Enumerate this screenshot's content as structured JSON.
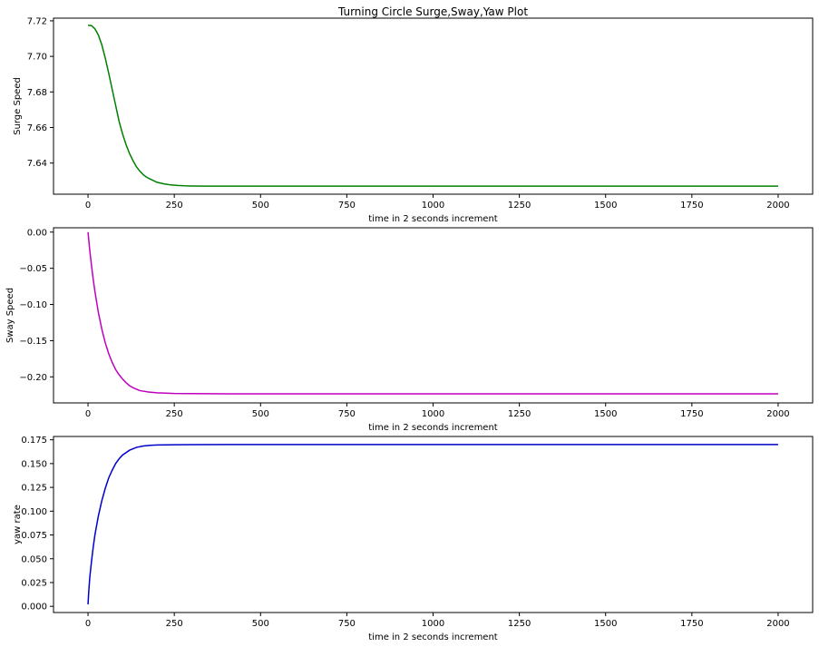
{
  "title": "Turning Circle Surge,Sway,Yaw Plot",
  "chart_data": [
    {
      "type": "line",
      "title": "Turning Circle Surge,Sway,Yaw Plot",
      "xlabel": "time in 2 seconds increment",
      "ylabel": "Surge Speed",
      "xlim": [
        -100,
        2100
      ],
      "ylim": [
        7.6225,
        7.7215
      ],
      "xticks": [
        0,
        250,
        500,
        750,
        1000,
        1250,
        1500,
        1750,
        2000
      ],
      "yticks": [
        7.64,
        7.66,
        7.68,
        7.7,
        7.72
      ],
      "ytick_labels": [
        "7.64",
        "7.66",
        "7.68",
        "7.70",
        "7.72"
      ],
      "grid": false,
      "color": "#008000",
      "series": [
        {
          "x": [
            0,
            10,
            20,
            30,
            40,
            50,
            60,
            70,
            80,
            90,
            100,
            110,
            120,
            130,
            140,
            150,
            160,
            170,
            180,
            190,
            200,
            220,
            240,
            260,
            280,
            300,
            350,
            400,
            450,
            500,
            750,
            1000,
            1250,
            1500,
            1750,
            2000
          ],
          "values": [
            7.7175,
            7.7173,
            7.7155,
            7.712,
            7.7065,
            7.699,
            7.6905,
            7.6815,
            7.6725,
            7.6635,
            7.6565,
            7.6505,
            7.6455,
            7.6415,
            7.638,
            7.6355,
            7.6335,
            7.632,
            7.631,
            7.6301,
            7.6292,
            7.6283,
            7.6277,
            7.6274,
            7.6272,
            7.6271,
            7.627,
            7.627,
            7.627,
            7.627,
            7.627,
            7.627,
            7.627,
            7.627,
            7.627,
            7.627
          ]
        }
      ]
    },
    {
      "type": "line",
      "xlabel": "time in 2 seconds increment",
      "ylabel": "Sway Speed",
      "xlim": [
        -100,
        2100
      ],
      "ylim": [
        -0.236,
        0.006
      ],
      "xticks": [
        0,
        250,
        500,
        750,
        1000,
        1250,
        1500,
        1750,
        2000
      ],
      "yticks": [
        0.0,
        -0.05,
        -0.1,
        -0.15,
        -0.2
      ],
      "ytick_labels": [
        "0.00",
        "−0.05",
        "−0.10",
        "−0.15",
        "−0.20"
      ],
      "grid": false,
      "color": "#bf00bf",
      "series": [
        {
          "x": [
            0,
            5,
            10,
            15,
            20,
            30,
            40,
            50,
            60,
            70,
            80,
            90,
            100,
            110,
            120,
            130,
            140,
            150,
            175,
            200,
            250,
            300,
            400,
            500,
            750,
            1000,
            1250,
            1500,
            1750,
            2000
          ],
          "values": [
            0.0,
            -0.025,
            -0.046,
            -0.065,
            -0.082,
            -0.111,
            -0.134,
            -0.153,
            -0.168,
            -0.18,
            -0.19,
            -0.197,
            -0.203,
            -0.208,
            -0.212,
            -0.215,
            -0.217,
            -0.219,
            -0.221,
            -0.222,
            -0.223,
            -0.2232,
            -0.2234,
            -0.2235,
            -0.2235,
            -0.2235,
            -0.2235,
            -0.2235,
            -0.2235,
            -0.2235
          ]
        }
      ]
    },
    {
      "type": "line",
      "xlabel": "time in 2 seconds increment",
      "ylabel": "yaw rate",
      "xlim": [
        -100,
        2100
      ],
      "ylim": [
        -0.0065,
        0.1785
      ],
      "xticks": [
        0,
        250,
        500,
        750,
        1000,
        1250,
        1500,
        1750,
        2000
      ],
      "yticks": [
        0.0,
        0.025,
        0.05,
        0.075,
        0.1,
        0.125,
        0.15,
        0.175
      ],
      "ytick_labels": [
        "0.000",
        "0.025",
        "0.050",
        "0.075",
        "0.100",
        "0.125",
        "0.150",
        "0.175"
      ],
      "grid": false,
      "color": "#0000cc",
      "series": [
        {
          "x": [
            0,
            2,
            5,
            10,
            15,
            20,
            30,
            40,
            50,
            60,
            70,
            80,
            90,
            100,
            120,
            140,
            160,
            180,
            200,
            250,
            300,
            400,
            500,
            750,
            1000,
            1250,
            1500,
            1750,
            2000
          ],
          "values": [
            0.002,
            0.015,
            0.03,
            0.047,
            0.062,
            0.075,
            0.095,
            0.111,
            0.124,
            0.135,
            0.143,
            0.15,
            0.155,
            0.159,
            0.164,
            0.167,
            0.1685,
            0.1692,
            0.1696,
            0.1698,
            0.1699,
            0.17,
            0.17,
            0.17,
            0.17,
            0.17,
            0.17,
            0.17,
            0.17
          ]
        }
      ]
    }
  ]
}
